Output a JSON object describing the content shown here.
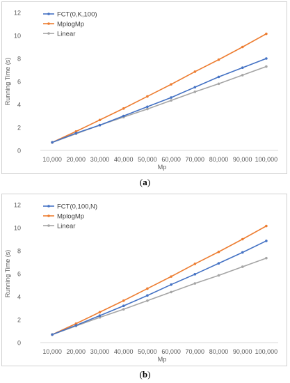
{
  "chart_data": [
    {
      "type": "line",
      "x": [
        "10,000",
        "20,000",
        "30,000",
        "40,000",
        "50,000",
        "60,000",
        "70,000",
        "80,000",
        "90,000",
        "100,000"
      ],
      "xlabel": "Mp",
      "ylabel": "Running Time (s)",
      "ylim": [
        0,
        12
      ],
      "yticks": [
        "0",
        "2",
        "4",
        "6",
        "8",
        "10",
        "12"
      ],
      "grid": false,
      "legend": "top-left",
      "series": [
        {
          "name": "FCT(0,K,100)",
          "color": "#4472c4",
          "values": [
            0.7,
            1.5,
            2.2,
            3.0,
            3.8,
            4.6,
            5.5,
            6.4,
            7.2,
            8.0
          ]
        },
        {
          "name": "MplogMp",
          "color": "#ed7d31",
          "values": [
            0.7,
            1.65,
            2.65,
            3.65,
            4.7,
            5.75,
            6.85,
            7.9,
            9.0,
            10.15
          ]
        },
        {
          "name": "Linear",
          "color": "#a5a5a5",
          "values": [
            0.7,
            1.45,
            2.2,
            2.9,
            3.6,
            4.35,
            5.1,
            5.8,
            6.55,
            7.3
          ]
        }
      ]
    },
    {
      "type": "line",
      "x": [
        "10,000",
        "20,000",
        "30,000",
        "40,000",
        "50,000",
        "60,000",
        "70,000",
        "80,000",
        "90,000",
        "100,000"
      ],
      "xlabel": "Mp",
      "ylabel": "Running Time (s)",
      "ylim": [
        0,
        12
      ],
      "yticks": [
        "0",
        "2",
        "4",
        "6",
        "8",
        "10",
        "12"
      ],
      "grid": false,
      "legend": "top-left",
      "series": [
        {
          "name": "FCT(0,100,N)",
          "color": "#4472c4",
          "values": [
            0.7,
            1.5,
            2.35,
            3.2,
            4.1,
            5.05,
            5.95,
            6.9,
            7.85,
            8.85
          ]
        },
        {
          "name": "MplogMp",
          "color": "#ed7d31",
          "values": [
            0.7,
            1.65,
            2.65,
            3.65,
            4.7,
            5.75,
            6.85,
            7.9,
            9.0,
            10.15
          ]
        },
        {
          "name": "Linear",
          "color": "#a5a5a5",
          "values": [
            0.7,
            1.45,
            2.2,
            2.9,
            3.65,
            4.4,
            5.15,
            5.85,
            6.6,
            7.35
          ]
        }
      ]
    }
  ],
  "captions": {
    "a": {
      "open": "(",
      "letter": "a",
      "close": ")"
    },
    "b": {
      "open": "(",
      "letter": "b",
      "close": ")"
    }
  }
}
